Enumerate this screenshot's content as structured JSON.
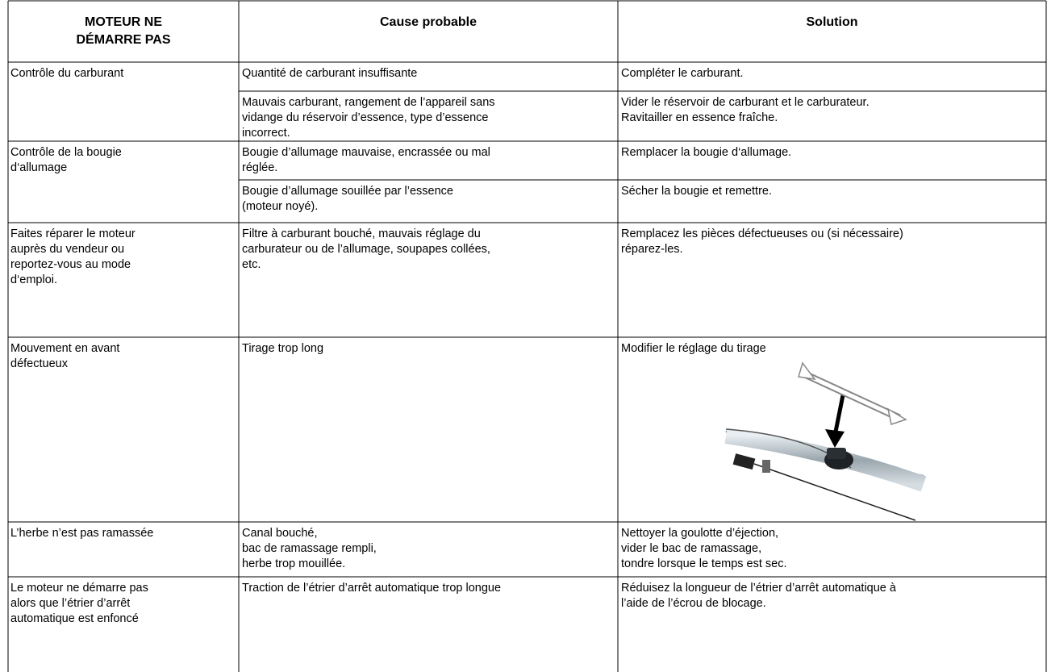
{
  "header": {
    "col1": [
      "MOTEUR NE",
      "DÉMARRE PAS"
    ],
    "col2": "Cause probable",
    "col3": "Solution"
  },
  "rows": [
    {
      "label": [
        "Contrôle du carburant"
      ],
      "items": [
        {
          "cause": [
            "Quantité de carburant insuffisante"
          ],
          "solution": [
            "Compléter le carburant."
          ]
        },
        {
          "cause": [
            "Mauvais carburant, rangement de l’appareil sans",
            "vidange du réservoir d’essence, type d’essence",
            "incorrect."
          ],
          "solution": [
            "Vider le réservoir de carburant et le carburateur.",
            "Ravitailler en essence fraîche."
          ]
        }
      ]
    },
    {
      "label": [
        "Contrôle de la bougie",
        "d‘allumage"
      ],
      "items": [
        {
          "cause": [
            "Bougie d’allumage mauvaise, encrassée ou mal",
            "réglée."
          ],
          "solution": [
            "Remplacer la bougie d‘allumage."
          ]
        },
        {
          "cause": [
            "Bougie d’allumage souillée par l’essence",
            "(moteur noyé)."
          ],
          "solution": [
            "Sécher la bougie et remettre."
          ]
        }
      ]
    },
    {
      "label": [
        "Faites réparer le moteur",
        "auprès du vendeur ou",
        "reportez-vous au mode",
        "d‘emploi."
      ],
      "items": [
        {
          "cause": [
            "Filtre à carburant bouché, mauvais réglage du",
            "carburateur ou de l’allumage, soupapes collées,",
            "etc."
          ],
          "solution": [
            "Remplacez les pièces défectueuses ou (si nécessaire)",
            "réparez-les."
          ]
        }
      ]
    },
    {
      "label": [
        "Mouvement en avant",
        "défectueux"
      ],
      "items": [
        {
          "cause": [
            "Tirage trop long"
          ],
          "solution": [
            "Modifier le réglage du tirage"
          ]
        }
      ]
    },
    {
      "label": [
        "L’herbe n’est pas ramassée"
      ],
      "items": [
        {
          "cause": [
            "Canal bouché,",
            "bac de ramassage rempli,",
            "herbe trop mouillée."
          ],
          "solution": [
            "Nettoyer la goulotte d’éjection,",
            "vider le bac de ramassage,",
            "tondre lorsque le temps est sec."
          ]
        }
      ]
    },
    {
      "label": [
        "Le moteur ne démarre pas",
        "alors que l’étrier d’arrêt",
        "automatique est enfoncé"
      ],
      "items": [
        {
          "cause": [
            "Traction de l’étrier d’arrêt automatique trop longue"
          ],
          "solution": [
            "Réduisez la longueur de l’étrier d’arrêt automatique à",
            "l’aide de l’écrou de blocage."
          ]
        }
      ]
    }
  ]
}
